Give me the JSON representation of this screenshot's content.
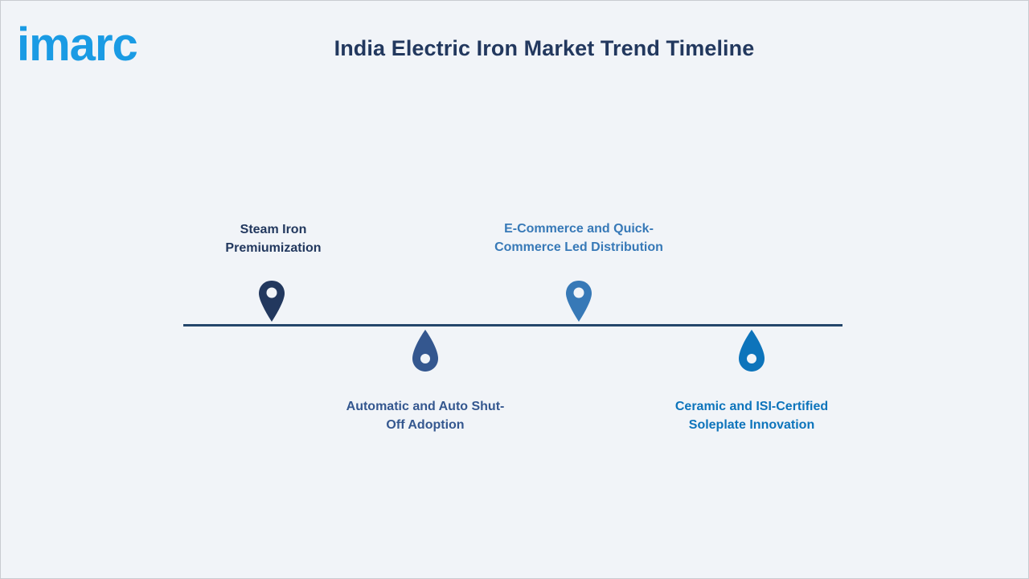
{
  "brand": {
    "logo_text": "imarc",
    "logo_color": "#1a9be4"
  },
  "title": "India Electric Iron Market Trend Timeline",
  "timeline": {
    "line_color": "#24466b",
    "items": [
      {
        "label_lines": [
          "Steam Iron",
          "Premiumization"
        ],
        "marker": "map-pin-icon",
        "color": "#22385e",
        "side": "above"
      },
      {
        "label_lines": [
          "Automatic and Auto Shut-",
          "Off Adoption"
        ],
        "marker": "drop-pin-icon",
        "color": "#34578f",
        "side": "below"
      },
      {
        "label_lines": [
          "E-Commerce and Quick-",
          "Commerce Led Distribution"
        ],
        "marker": "map-pin-icon",
        "color": "#3779b7",
        "side": "above"
      },
      {
        "label_lines": [
          "Ceramic and ISI-Certified",
          "Soleplate Innovation"
        ],
        "marker": "drop-pin-icon",
        "color": "#0d74bb",
        "side": "below"
      }
    ]
  }
}
